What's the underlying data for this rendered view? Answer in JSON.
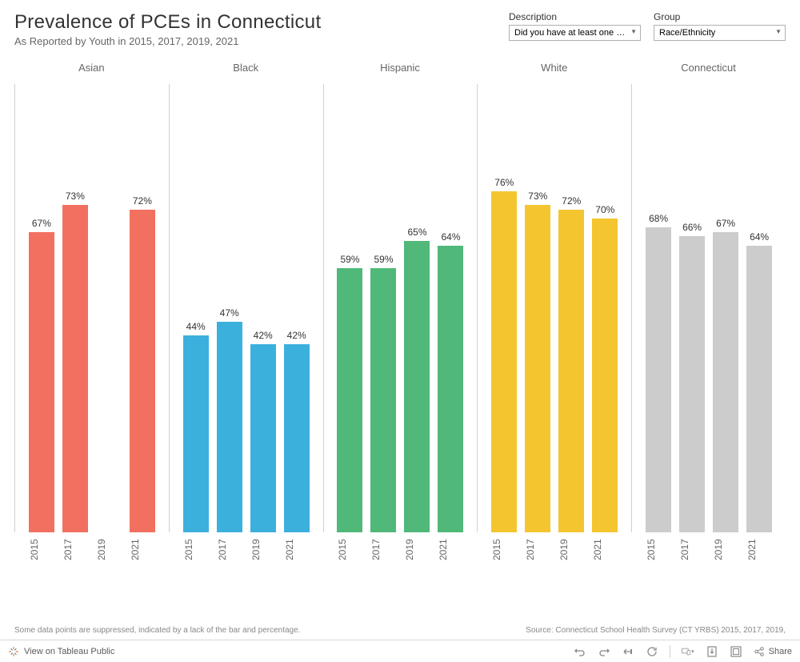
{
  "header": {
    "title": "Prevalence of PCEs in Connecticut",
    "subtitle": "As Reported by Youth in 2015, 2017, 2019, 2021"
  },
  "filters": {
    "description": {
      "label": "Description",
      "value": "Did you have at least one me..."
    },
    "group": {
      "label": "Group",
      "value": "Race/Ethnicity"
    }
  },
  "chart": {
    "type": "grouped-bar",
    "ymax": 100,
    "years": [
      "2015",
      "2017",
      "2019",
      "2021"
    ],
    "bar_label_fontsize": 12,
    "axis_fontsize": 12,
    "border_color": "#d0d0d0",
    "panels": [
      {
        "name": "Asian",
        "color": "#f27060",
        "values": [
          67,
          73,
          null,
          72
        ]
      },
      {
        "name": "Black",
        "color": "#3bb0dd",
        "values": [
          44,
          47,
          42,
          42
        ]
      },
      {
        "name": "Hispanic",
        "color": "#50b879",
        "values": [
          59,
          59,
          65,
          64
        ]
      },
      {
        "name": "White",
        "color": "#f5c530",
        "values": [
          76,
          73,
          72,
          70
        ]
      },
      {
        "name": "Connecticut",
        "color": "#cccccc",
        "values": [
          68,
          66,
          67,
          64
        ]
      }
    ]
  },
  "footer": {
    "note": "Some data points are suppressed, indicated by a lack of the bar and percentage.",
    "source": "Source: Connecticut School Health Survey (CT YRBS) 2015, 2017, 2019,"
  },
  "toolbar": {
    "view_on": "View on Tableau Public",
    "share": "Share"
  }
}
